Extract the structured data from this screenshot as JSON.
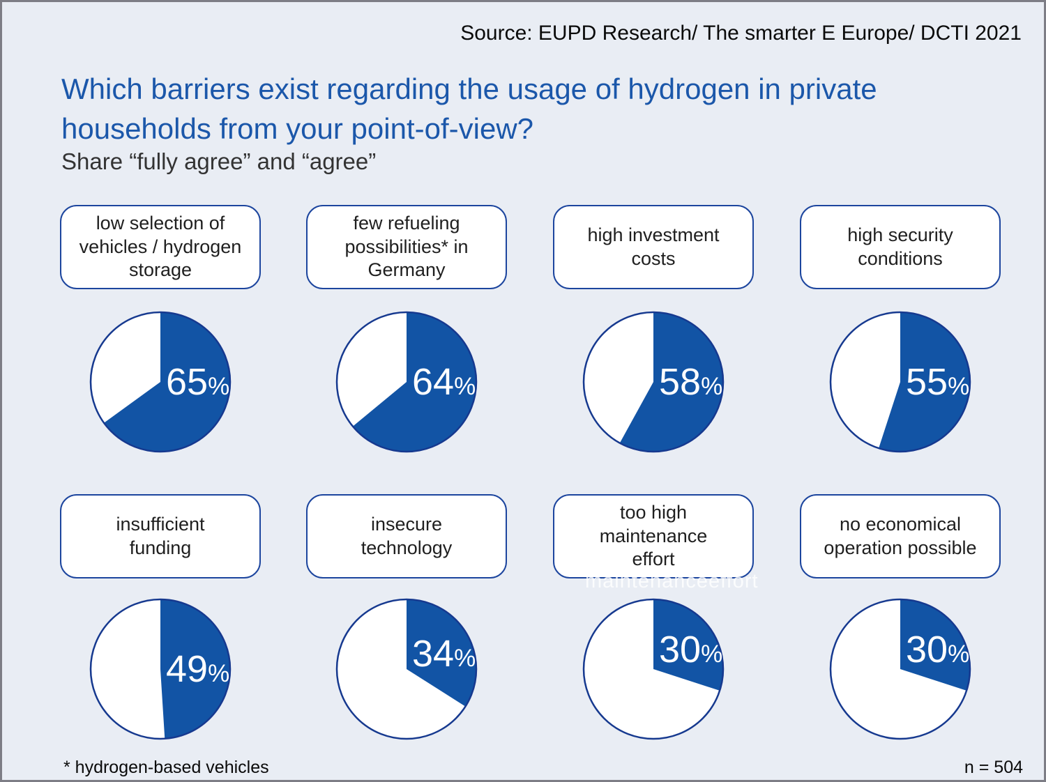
{
  "ghost_text": "maintenanceeffort",
  "colors": {
    "background": "#E9EDF4",
    "frame_border": "#7d7d85",
    "agree_blue": "#1254A5",
    "pie_rim_navy": "#16398f",
    "box_border_blue": "#1c459e",
    "title_blue": "#1b57aa",
    "percent_text": "#ffffff"
  },
  "chart_data": {
    "type": "pie",
    "title": "Which barriers exist regarding the usage of hydrogen in private households from your point-of-view?",
    "subtitle": "Share “fully agree” and “agree”",
    "source": "Source: EUPD Research/ The smarter E Europe/ DCTI 2021",
    "footnote": "* hydrogen-based vehicles",
    "sample_note": "n = 504",
    "unit": "%",
    "legend_position": "none",
    "slice_start": "12-o'clock, clockwise",
    "items": [
      {
        "label": "low selection of vehicles / hydrogen storage",
        "label_lines": [
          "low selection of",
          "vehicles / hydrogen",
          "storage"
        ],
        "value": 65
      },
      {
        "label": "few refueling possibilities* in Germany",
        "label_lines": [
          "few refueling",
          "possibilities* in",
          "Germany"
        ],
        "value": 64
      },
      {
        "label": "high investment costs",
        "label_lines": [
          "high investment",
          "costs"
        ],
        "value": 58
      },
      {
        "label": "high security conditions",
        "label_lines": [
          "high security",
          "conditions"
        ],
        "value": 55
      },
      {
        "label": "insufficient funding",
        "label_lines": [
          "insufficient",
          "funding"
        ],
        "value": 49
      },
      {
        "label": "insecure technology",
        "label_lines": [
          "insecure",
          "technology"
        ],
        "value": 34
      },
      {
        "label": "too high maintenance effort",
        "label_lines": [
          "too high",
          "maintenance",
          "effort"
        ],
        "value": 30
      },
      {
        "label": "no economical operation possible",
        "label_lines": [
          "no economical",
          "operation possible"
        ],
        "value": 30
      }
    ]
  }
}
